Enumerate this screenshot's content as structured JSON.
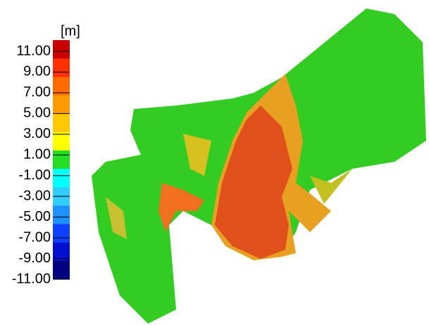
{
  "legend": {
    "unit": "[m]",
    "labels": [
      "11.00",
      "9.00",
      "7.00",
      "5.00",
      "3.00",
      "1.00",
      "-1.00",
      "-3.00",
      "-5.00",
      "-7.00",
      "-9.00",
      "-11.00"
    ],
    "colors": [
      "#c80000",
      "#ff3000",
      "#ff6a00",
      "#ff9a00",
      "#ffc800",
      "#ffff00",
      "#22dd22",
      "#00ffff",
      "#33ccff",
      "#1e90ff",
      "#1040ff",
      "#0010d0",
      "#000080"
    ]
  }
}
